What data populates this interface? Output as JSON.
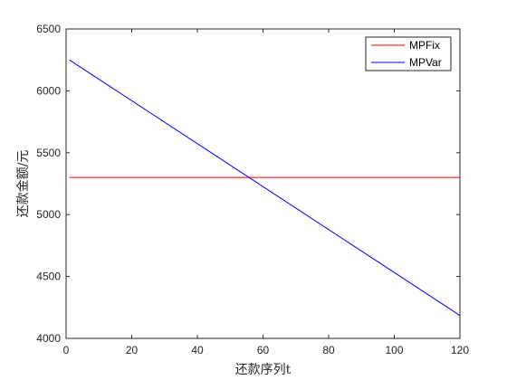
{
  "chart_data": {
    "type": "line",
    "title": "",
    "xlabel": "还款序列t",
    "ylabel": "还款金额/元",
    "xlim": [
      0,
      120
    ],
    "ylim": [
      4000,
      6500
    ],
    "xticks": [
      0,
      20,
      40,
      60,
      80,
      100,
      120
    ],
    "yticks": [
      4000,
      4500,
      5000,
      5500,
      6000,
      6500
    ],
    "grid": false,
    "legend_position": "top-right",
    "series": [
      {
        "name": "MPFix",
        "color": "#ff0000",
        "x": [
          1,
          120
        ],
        "y": [
          5300,
          5300
        ]
      },
      {
        "name": "MPVar",
        "color": "#0000ff",
        "x": [
          1,
          120
        ],
        "y": [
          6250,
          4185
        ]
      }
    ]
  }
}
